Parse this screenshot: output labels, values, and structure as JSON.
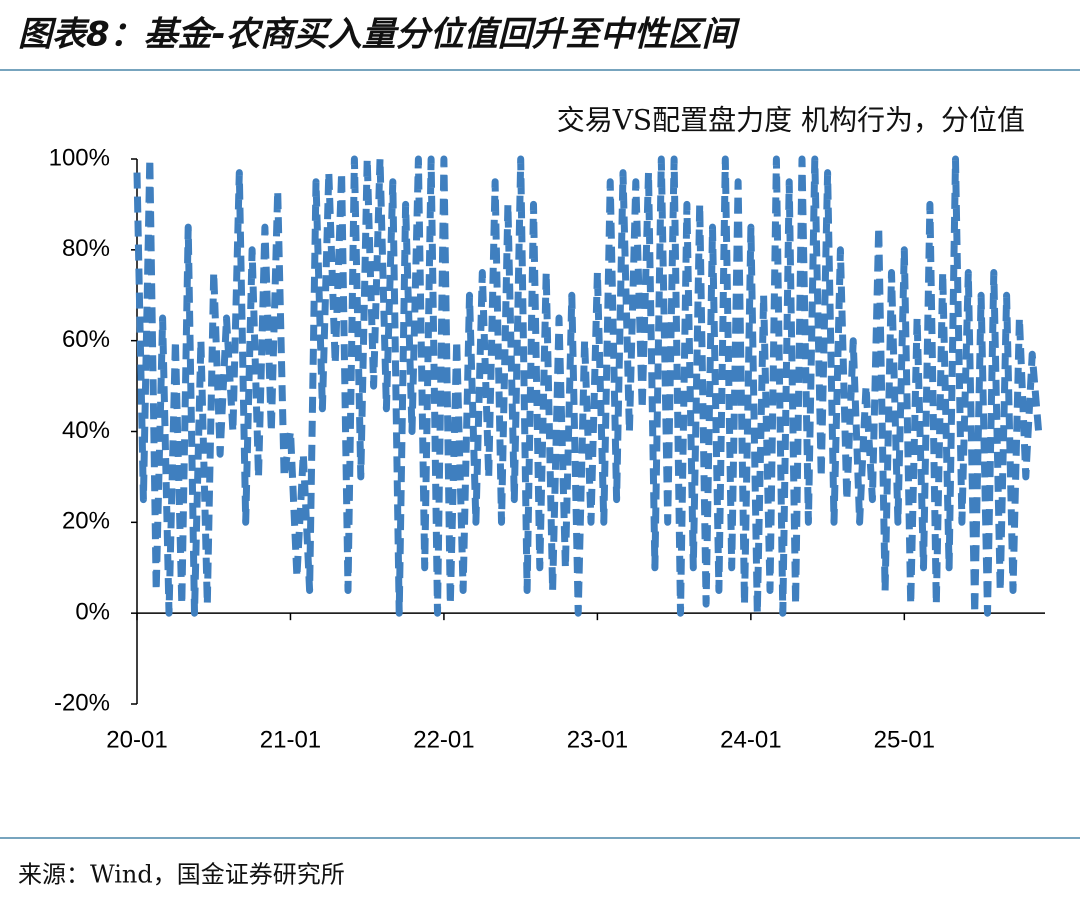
{
  "chart_data": {
    "type": "line",
    "title": "图表8：基金-农商买入量分位值回升至中性区间",
    "source": "来源：Wind，国金证券研究所",
    "x": [
      0,
      0.5,
      1,
      1.5,
      2,
      2.5,
      3,
      3.5,
      4,
      4.5,
      5,
      5.5,
      6,
      6.5,
      7,
      7.5,
      8,
      8.5,
      9,
      9.5,
      10,
      10.5,
      11,
      11.5,
      12,
      12.5,
      13,
      13.5,
      14,
      14.5,
      15,
      15.5,
      16,
      16.5,
      17,
      17.5,
      18,
      18.5,
      19,
      19.5,
      20,
      20.5,
      21,
      21.5,
      22,
      22.5,
      23,
      23.5,
      24,
      24.5,
      25,
      25.5,
      26,
      26.5,
      27,
      27.5,
      28,
      28.5,
      29,
      29.5,
      30,
      30.5,
      31,
      31.5,
      32,
      32.5,
      33,
      33.5,
      34,
      34.5,
      35,
      35.5,
      36,
      36.5,
      37,
      37.5,
      38,
      38.5,
      39,
      39.5,
      40,
      40.5,
      41,
      41.5,
      42,
      42.5,
      43,
      43.5,
      44,
      44.5,
      45,
      45.5,
      46,
      46.5,
      47,
      47.5,
      48,
      48.5,
      49,
      49.5,
      50,
      50.5,
      51,
      51.5,
      52,
      52.5,
      53,
      53.5,
      54,
      54.5,
      55,
      55.5,
      56,
      56.5,
      57,
      57.5,
      58,
      58.5,
      59,
      59.5,
      60,
      60.5,
      61,
      61.5,
      62,
      62.5,
      63,
      63.5,
      64,
      64.5,
      65,
      65.5,
      66,
      66.5,
      67,
      67.5,
      68,
      68.5,
      69,
      69.5,
      70,
      70.5
    ],
    "series": [
      {
        "name": "交易VS配置盘力度 机构行为，分位值",
        "color": "#3f7fbf",
        "values": [
          97,
          25,
          100,
          5,
          65,
          0,
          60,
          2,
          85,
          0,
          60,
          2,
          75,
          35,
          65,
          40,
          97,
          20,
          80,
          30,
          85,
          40,
          93,
          30,
          40,
          8,
          35,
          5,
          95,
          45,
          97,
          55,
          97,
          5,
          100,
          30,
          100,
          50,
          100,
          45,
          95,
          0,
          90,
          40,
          100,
          10,
          100,
          0,
          100,
          2,
          60,
          5,
          70,
          20,
          75,
          30,
          95,
          20,
          90,
          25,
          100,
          5,
          90,
          10,
          75,
          5,
          65,
          10,
          70,
          0,
          60,
          20,
          75,
          20,
          95,
          25,
          97,
          40,
          95,
          45,
          97,
          10,
          100,
          20,
          100,
          0,
          90,
          10,
          90,
          2,
          85,
          5,
          100,
          10,
          95,
          2,
          85,
          0,
          70,
          5,
          100,
          0,
          95,
          2,
          100,
          20,
          100,
          30,
          97,
          20,
          80,
          25,
          60,
          20,
          50,
          25,
          85,
          5,
          75,
          20,
          80,
          2,
          65,
          10,
          90,
          2,
          75,
          10,
          100,
          20,
          75,
          0,
          70,
          0,
          75,
          5,
          70,
          5,
          65,
          30,
          57,
          40
        ]
      }
    ],
    "xlim": [
      0,
      71
    ],
    "xticks": [
      {
        "value": 0,
        "label": "20-01"
      },
      {
        "value": 12,
        "label": "21-01"
      },
      {
        "value": 24,
        "label": "22-01"
      },
      {
        "value": 36,
        "label": "23-01"
      },
      {
        "value": 48,
        "label": "24-01"
      },
      {
        "value": 60,
        "label": "25-01"
      }
    ],
    "ylim": [
      -20,
      100
    ],
    "yticks": [
      {
        "value": -20,
        "label": "-20%"
      },
      {
        "value": 0,
        "label": "0%"
      },
      {
        "value": 20,
        "label": "20%"
      },
      {
        "value": 40,
        "label": "40%"
      },
      {
        "value": 60,
        "label": "60%"
      },
      {
        "value": 80,
        "label": "80%"
      },
      {
        "value": 100,
        "label": "100%"
      }
    ],
    "legend": "top-right",
    "grid": false
  }
}
